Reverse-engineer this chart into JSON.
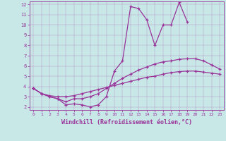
{
  "xlabel": "Windchill (Refroidissement éolien,°C)",
  "xlim": [
    -0.5,
    23.5
  ],
  "ylim": [
    1.7,
    12.3
  ],
  "xticks": [
    0,
    1,
    2,
    3,
    4,
    5,
    6,
    7,
    8,
    9,
    10,
    11,
    12,
    13,
    14,
    15,
    16,
    17,
    18,
    19,
    20,
    21,
    22,
    23
  ],
  "yticks": [
    2,
    3,
    4,
    5,
    6,
    7,
    8,
    9,
    10,
    11,
    12
  ],
  "bg_color": "#c8e8e8",
  "line_color": "#993399",
  "series": [
    [
      3.8,
      3.3,
      3.0,
      2.8,
      2.2,
      2.3,
      2.2,
      2.0,
      2.2,
      3.0,
      5.5,
      6.5,
      11.8,
      11.6,
      10.5,
      8.0,
      10.0,
      10.0,
      12.2,
      10.3,
      null,
      null,
      null,
      null
    ],
    [
      3.8,
      3.3,
      3.0,
      2.8,
      2.5,
      2.8,
      2.8,
      3.0,
      3.3,
      3.8,
      4.3,
      4.8,
      5.2,
      5.6,
      5.9,
      6.2,
      6.4,
      6.5,
      6.65,
      6.7,
      6.7,
      6.5,
      6.1,
      5.7
    ],
    [
      3.8,
      3.3,
      3.1,
      3.0,
      3.0,
      3.1,
      3.3,
      3.5,
      3.7,
      3.9,
      4.1,
      4.3,
      4.5,
      4.7,
      4.9,
      5.0,
      5.2,
      5.35,
      5.45,
      5.5,
      5.5,
      5.4,
      5.3,
      5.2
    ]
  ]
}
